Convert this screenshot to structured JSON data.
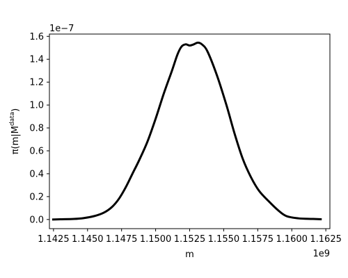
{
  "chart_data": {
    "type": "line",
    "title": "",
    "xlabel": "m",
    "ylabel": "π(m|M",
    "ylabel_superscript": "data",
    "ylabel_close": ")",
    "x_offset_label": "1e9",
    "y_offset_label": "1e−7",
    "xlim": [
      1142200000.0,
      1162800000.0
    ],
    "ylim": [
      -8e-09,
      1.62e-07
    ],
    "grid": false,
    "x_ticks": [
      1142500000.0,
      1145000000.0,
      1147500000.0,
      1150000000.0,
      1152500000.0,
      1155000000.0,
      1157500000.0,
      1160000000.0,
      1162500000.0
    ],
    "x_tick_labels": [
      "1.1425",
      "1.1450",
      "1.1475",
      "1.1500",
      "1.1525",
      "1.1550",
      "1.1575",
      "1.1600",
      "1.1625"
    ],
    "y_ticks": [
      0.0,
      2e-08,
      4e-08,
      6e-08,
      8e-08,
      1e-07,
      1.2e-07,
      1.4e-07,
      1.6e-07
    ],
    "y_tick_labels": [
      "0.0",
      "0.2",
      "0.4",
      "0.6",
      "0.8",
      "1.0",
      "1.2",
      "1.4",
      "1.6"
    ],
    "series": [
      {
        "color": "#000000",
        "x": [
          1142400000.0,
          1143000000.0,
          1144000000.0,
          1144700000.0,
          1145500000.0,
          1146200000.0,
          1146800000.0,
          1147300000.0,
          1147800000.0,
          1148300000.0,
          1148800000.0,
          1149400000.0,
          1150000000.0,
          1150600000.0,
          1151200000.0,
          1151600000.0,
          1151900000.0,
          1152200000.0,
          1152500000.0,
          1152800000.0,
          1153100000.0,
          1153400000.0,
          1153800000.0,
          1154500000.0,
          1155200000.0,
          1155800000.0,
          1156400000.0,
          1157000000.0,
          1157600000.0,
          1158300000.0,
          1159000000.0,
          1159600000.0,
          1160500000.0,
          1161500000.0,
          1162200000.0
        ],
        "y": [
          0.0,
          2e-10,
          5e-10,
          1.2e-09,
          3e-09,
          6e-09,
          1.1e-08,
          1.8e-08,
          2.8e-08,
          4e-08,
          5.2e-08,
          6.8e-08,
          8.8e-08,
          1.1e-07,
          1.3e-07,
          1.44e-07,
          1.51e-07,
          1.53e-07,
          1.52e-07,
          1.53e-07,
          1.545e-07,
          1.53e-07,
          1.47e-07,
          1.26e-07,
          1e-07,
          7.5e-08,
          5.3e-08,
          3.7e-08,
          2.5e-08,
          1.6e-08,
          8e-09,
          3e-09,
          1e-09,
          5e-10,
          2e-10
        ]
      }
    ]
  }
}
